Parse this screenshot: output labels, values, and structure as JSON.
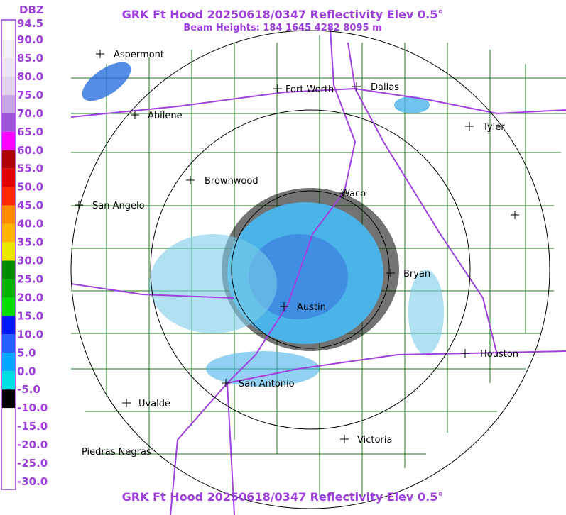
{
  "header": {
    "title": "GRK Ft Hood 20250618/0347 Reflectivity Elev 0.5°",
    "subtitle": "Beam Heights: 184 1645 4282 8095 m"
  },
  "legend": {
    "unit": "DBZ",
    "levels": [
      {
        "label": "94.5",
        "color": "#ffffff"
      },
      {
        "label": "90.0",
        "color": "#f4f0fa"
      },
      {
        "label": "85.0",
        "color": "#ebe3f7"
      },
      {
        "label": "80.0",
        "color": "#e0d4f2"
      },
      {
        "label": "75.0",
        "color": "#c8a6e8"
      },
      {
        "label": "70.0",
        "color": "#9b54d8"
      },
      {
        "label": "65.0",
        "color": "#ff00ff"
      },
      {
        "label": "60.0",
        "color": "#b00000"
      },
      {
        "label": "55.0",
        "color": "#e00000"
      },
      {
        "label": "50.0",
        "color": "#ff2a00"
      },
      {
        "label": "45.0",
        "color": "#ff8c00"
      },
      {
        "label": "40.0",
        "color": "#ffb400"
      },
      {
        "label": "35.0",
        "color": "#e8e800"
      },
      {
        "label": "30.0",
        "color": "#008c00"
      },
      {
        "label": "25.0",
        "color": "#00b400"
      },
      {
        "label": "20.0",
        "color": "#00e000"
      },
      {
        "label": "15.0",
        "color": "#0018ff"
      },
      {
        "label": "10.0",
        "color": "#2860ff"
      },
      {
        "label": "5.0",
        "color": "#00a8ff"
      },
      {
        "label": "0.0",
        "color": "#00e0e0"
      },
      {
        "label": "-5.0",
        "color": "#000000"
      },
      {
        "label": "-10.0",
        "color": "#ffffff"
      },
      {
        "label": "-15.0",
        "color": "#ffffff"
      },
      {
        "label": "-20.0",
        "color": "#ffffff"
      },
      {
        "label": "-25.0",
        "color": "#ffffff"
      },
      {
        "label": "-30.0",
        "color": "#ffffff"
      }
    ]
  },
  "cities": [
    "Aspermont",
    "Fort Worth",
    "Dallas",
    "Abilene",
    "Tyler",
    "Brownwood",
    "Waco",
    "San Angelo",
    "Bryan",
    "Austin",
    "Houston",
    "San Antonio",
    "Uvalde",
    "Victoria",
    "Piedras Negras"
  ]
}
